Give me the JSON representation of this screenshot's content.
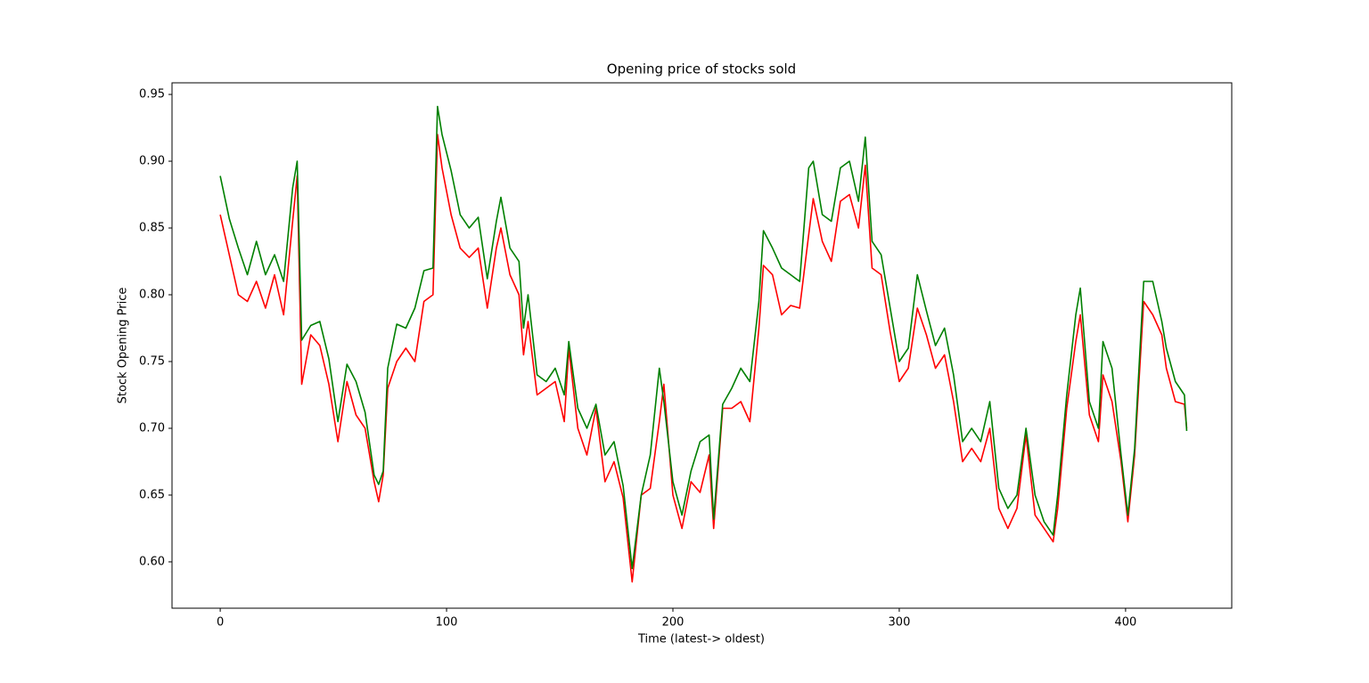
{
  "chart_data": {
    "type": "line",
    "title": "Opening price of stocks sold",
    "x_label": "Time (latest-> oldest)",
    "y_label": "Stock Opening Price",
    "x": [
      0,
      4,
      8,
      12,
      16,
      20,
      24,
      28,
      32,
      34,
      36,
      40,
      44,
      48,
      52,
      56,
      60,
      64,
      68,
      70,
      72,
      74,
      78,
      82,
      86,
      90,
      94,
      96,
      98,
      102,
      106,
      110,
      114,
      118,
      122,
      124,
      128,
      132,
      134,
      136,
      140,
      144,
      148,
      152,
      154,
      158,
      162,
      166,
      170,
      174,
      178,
      182,
      186,
      190,
      194,
      196,
      200,
      204,
      208,
      212,
      216,
      218,
      222,
      226,
      230,
      234,
      238,
      240,
      244,
      248,
      252,
      256,
      260,
      262,
      266,
      270,
      274,
      278,
      282,
      285,
      288,
      292,
      296,
      300,
      304,
      308,
      312,
      316,
      320,
      324,
      328,
      332,
      336,
      340,
      344,
      348,
      352,
      356,
      360,
      364,
      368,
      370,
      374,
      378,
      380,
      384,
      388,
      390,
      394,
      398,
      401,
      404,
      408,
      412,
      416,
      418,
      422,
      426,
      427
    ],
    "series": [
      {
        "color": "#ff0000",
        "values": [
          0.86,
          0.83,
          0.8,
          0.795,
          0.81,
          0.79,
          0.815,
          0.785,
          0.855,
          0.889,
          0.733,
          0.77,
          0.762,
          0.733,
          0.69,
          0.735,
          0.71,
          0.7,
          0.66,
          0.645,
          0.665,
          0.73,
          0.75,
          0.76,
          0.75,
          0.795,
          0.8,
          0.92,
          0.895,
          0.86,
          0.835,
          0.828,
          0.835,
          0.79,
          0.835,
          0.85,
          0.815,
          0.8,
          0.755,
          0.78,
          0.725,
          0.73,
          0.735,
          0.705,
          0.76,
          0.7,
          0.68,
          0.715,
          0.66,
          0.675,
          0.648,
          0.585,
          0.65,
          0.655,
          0.705,
          0.733,
          0.65,
          0.625,
          0.66,
          0.652,
          0.68,
          0.625,
          0.715,
          0.715,
          0.72,
          0.705,
          0.775,
          0.822,
          0.815,
          0.785,
          0.792,
          0.79,
          0.845,
          0.872,
          0.84,
          0.825,
          0.87,
          0.875,
          0.85,
          0.897,
          0.82,
          0.815,
          0.772,
          0.735,
          0.745,
          0.79,
          0.77,
          0.745,
          0.755,
          0.72,
          0.675,
          0.685,
          0.675,
          0.7,
          0.64,
          0.625,
          0.64,
          0.695,
          0.635,
          0.625,
          0.615,
          0.64,
          0.715,
          0.765,
          0.785,
          0.71,
          0.69,
          0.74,
          0.72,
          0.675,
          0.63,
          0.68,
          0.795,
          0.785,
          0.77,
          0.745,
          0.72,
          0.718,
          0.7
        ]
      },
      {
        "color": "#008000",
        "values": [
          0.889,
          0.857,
          0.835,
          0.815,
          0.84,
          0.815,
          0.83,
          0.81,
          0.88,
          0.9,
          0.766,
          0.777,
          0.78,
          0.752,
          0.705,
          0.748,
          0.735,
          0.712,
          0.665,
          0.658,
          0.668,
          0.745,
          0.778,
          0.775,
          0.79,
          0.818,
          0.82,
          0.941,
          0.92,
          0.893,
          0.86,
          0.85,
          0.858,
          0.812,
          0.855,
          0.873,
          0.835,
          0.825,
          0.775,
          0.8,
          0.74,
          0.735,
          0.745,
          0.725,
          0.765,
          0.715,
          0.7,
          0.718,
          0.68,
          0.69,
          0.657,
          0.595,
          0.65,
          0.68,
          0.745,
          0.72,
          0.66,
          0.635,
          0.668,
          0.69,
          0.695,
          0.632,
          0.718,
          0.73,
          0.745,
          0.735,
          0.795,
          0.848,
          0.835,
          0.82,
          0.815,
          0.81,
          0.895,
          0.9,
          0.86,
          0.855,
          0.895,
          0.9,
          0.87,
          0.918,
          0.84,
          0.83,
          0.79,
          0.75,
          0.76,
          0.815,
          0.788,
          0.762,
          0.775,
          0.74,
          0.69,
          0.7,
          0.69,
          0.72,
          0.655,
          0.64,
          0.65,
          0.7,
          0.65,
          0.63,
          0.62,
          0.65,
          0.725,
          0.785,
          0.805,
          0.72,
          0.7,
          0.765,
          0.745,
          0.68,
          0.635,
          0.685,
          0.81,
          0.81,
          0.78,
          0.76,
          0.735,
          0.725,
          0.698
        ]
      }
    ],
    "xlim": [
      -21.3,
      446.9
    ],
    "ylim": [
      0.5653,
      0.9587
    ],
    "xticks": [
      0,
      100,
      200,
      300,
      400
    ],
    "yticks": [
      {
        "value": 0.6,
        "label": "0.60"
      },
      0.65,
      {
        "value": 0.7,
        "label": "0.70"
      },
      0.75,
      {
        "value": 0.8,
        "label": "0.80"
      },
      0.85,
      {
        "value": 0.9,
        "label": "0.90"
      },
      0.95
    ]
  }
}
